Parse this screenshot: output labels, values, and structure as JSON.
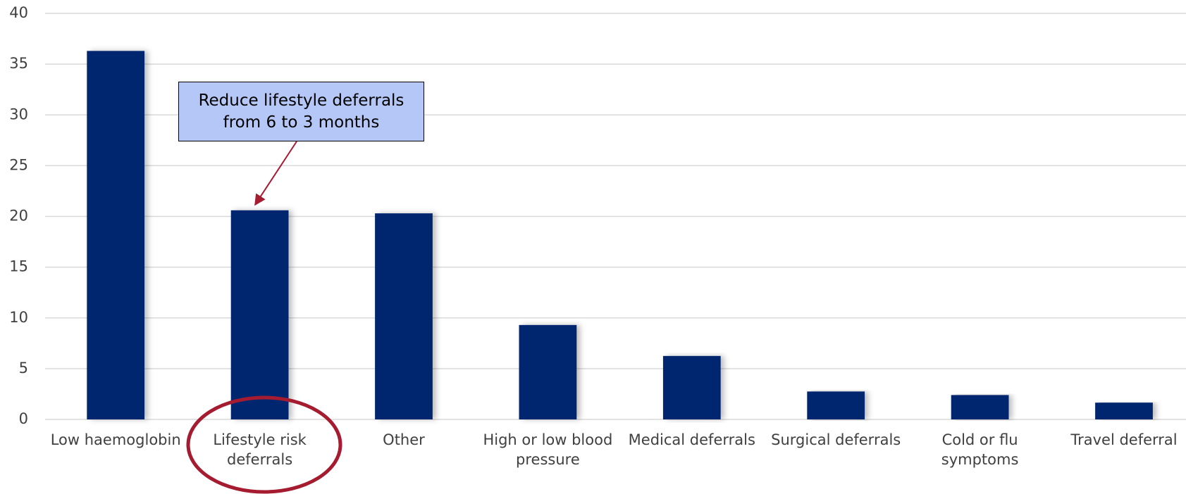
{
  "chart_data": {
    "type": "bar",
    "categories": [
      "Low haemoglobin",
      "Lifestyle risk deferrals",
      "Other",
      "High or low blood pressure",
      "Medical deferrals",
      "Surgical deferrals",
      "Cold or flu symptoms",
      "Travel deferral"
    ],
    "values": [
      36.3,
      20.6,
      20.3,
      9.3,
      6.25,
      2.75,
      2.4,
      1.65
    ],
    "color": "#002570",
    "ylim": [
      0,
      40
    ],
    "yticks": [
      0,
      5,
      10,
      15,
      20,
      25,
      30,
      35,
      40
    ],
    "grid": true,
    "annotation": "Reduce lifestyle deferrals from 6 to 3 months"
  }
}
